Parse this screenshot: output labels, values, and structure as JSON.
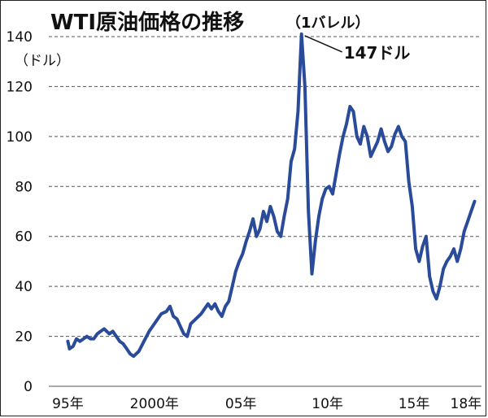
{
  "chart_data": {
    "type": "line",
    "title": "WTI原油価格の推移",
    "subtitle": "（1バレル）",
    "unit_label": "（ドル）",
    "ylim": [
      0,
      140
    ],
    "y_ticks": [
      "0",
      "20",
      "40",
      "60",
      "80",
      "100",
      "120",
      "140"
    ],
    "y_tick_values": [
      0,
      20,
      40,
      60,
      80,
      100,
      120,
      140
    ],
    "xlim": [
      1993.9,
      2018.9
    ],
    "x_ticks": [
      {
        "label": "95年",
        "value": 1995
      },
      {
        "label": "2000年",
        "value": 2000
      },
      {
        "label": "05年",
        "value": 2005
      },
      {
        "label": "10年",
        "value": 2010
      },
      {
        "label": "15年",
        "value": 2015
      },
      {
        "label": "18年",
        "value": 2018
      }
    ],
    "grid": "horizontal-dashed",
    "line_color": "#2a4a9a",
    "annotation": {
      "text": "147ドル",
      "x": 2008.5,
      "y": 141
    },
    "x": [
      1995.0,
      1995.1,
      1995.3,
      1995.5,
      1995.7,
      1995.9,
      1996.1,
      1996.3,
      1996.5,
      1996.7,
      1996.9,
      1997.1,
      1997.4,
      1997.6,
      1997.8,
      1998.0,
      1998.2,
      1998.4,
      1998.6,
      1998.8,
      1999.1,
      1999.4,
      1999.7,
      2000.1,
      2000.4,
      2000.7,
      2000.9,
      2001.1,
      2001.3,
      2001.5,
      2001.7,
      2001.9,
      2002.1,
      2002.4,
      2002.7,
      2002.9,
      2003.1,
      2003.3,
      2003.5,
      2003.7,
      2003.9,
      2004.1,
      2004.3,
      2004.5,
      2004.7,
      2004.9,
      2005.1,
      2005.3,
      2005.5,
      2005.7,
      2005.9,
      2006.1,
      2006.3,
      2006.5,
      2006.7,
      2006.9,
      2007.1,
      2007.3,
      2007.5,
      2007.7,
      2007.9,
      2008.1,
      2008.3,
      2008.5,
      2008.7,
      2008.9,
      2009.1,
      2009.3,
      2009.5,
      2009.7,
      2009.9,
      2010.1,
      2010.3,
      2010.5,
      2010.7,
      2010.9,
      2011.1,
      2011.3,
      2011.5,
      2011.7,
      2011.9,
      2012.1,
      2012.3,
      2012.5,
      2012.7,
      2012.9,
      2013.1,
      2013.3,
      2013.5,
      2013.7,
      2013.9,
      2014.1,
      2014.3,
      2014.5,
      2014.7,
      2014.9,
      2015.1,
      2015.3,
      2015.5,
      2015.7,
      2015.9,
      2016.1,
      2016.3,
      2016.5,
      2016.7,
      2016.9,
      2017.1,
      2017.3,
      2017.5,
      2017.7,
      2017.9,
      2018.1,
      2018.3,
      2018.5
    ],
    "y": [
      18,
      15,
      16,
      19,
      18,
      19,
      20,
      19,
      19,
      21,
      22,
      23,
      21,
      22,
      20,
      18,
      17,
      15,
      13,
      12,
      14,
      18,
      22,
      26,
      29,
      30,
      32,
      28,
      27,
      24,
      21,
      20,
      25,
      27,
      29,
      31,
      33,
      31,
      33,
      30,
      28,
      32,
      34,
      40,
      46,
      50,
      53,
      58,
      62,
      67,
      60,
      63,
      70,
      66,
      72,
      68,
      62,
      60,
      68,
      75,
      90,
      95,
      110,
      141,
      120,
      70,
      45,
      58,
      68,
      75,
      79,
      80,
      77,
      85,
      93,
      100,
      105,
      112,
      110,
      100,
      97,
      104,
      100,
      92,
      95,
      98,
      103,
      98,
      94,
      96,
      101,
      104,
      100,
      98,
      82,
      72,
      55,
      50,
      56,
      60,
      44,
      38,
      35,
      40,
      47,
      50,
      52,
      55,
      50,
      55,
      62,
      66,
      70,
      74
    ]
  }
}
